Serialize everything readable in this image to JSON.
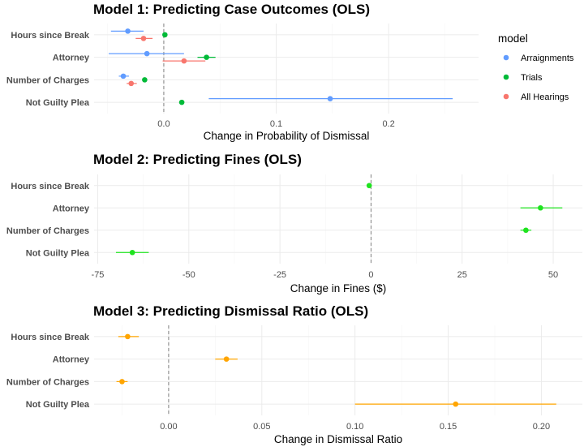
{
  "chart_data": [
    {
      "type": "coefficient-plot",
      "title": "Model 1: Predicting Case Outcomes (OLS)",
      "xlabel": "Change in Probability of Dismissal",
      "categories": [
        "Hours since Break",
        "Attorney",
        "Number of Charges",
        "Not Guilty Plea"
      ],
      "xticks": [
        0.0,
        0.1,
        0.2
      ],
      "xtick_labels": [
        "0.0",
        "0.1",
        "0.2"
      ],
      "xlim": [
        -0.062,
        0.28
      ],
      "zero_line": 0,
      "legend": {
        "title": "model",
        "position": "right"
      },
      "series": [
        {
          "name": "Arraignments",
          "color": "#619CFF",
          "points": [
            {
              "category": "Hours since Break",
              "estimate": -0.032,
              "low": -0.047,
              "high": -0.018
            },
            {
              "category": "Attorney",
              "estimate": -0.015,
              "low": -0.049,
              "high": 0.018
            },
            {
              "category": "Number of Charges",
              "estimate": -0.036,
              "low": -0.04,
              "high": -0.031
            },
            {
              "category": "Not Guilty Plea",
              "estimate": 0.148,
              "low": 0.04,
              "high": 0.257
            }
          ]
        },
        {
          "name": "Trials",
          "color": "#00BA38",
          "points": [
            {
              "category": "Hours since Break",
              "estimate": 0.001,
              "low": -0.001,
              "high": 0.003
            },
            {
              "category": "Attorney",
              "estimate": 0.038,
              "low": 0.03,
              "high": 0.046
            },
            {
              "category": "Number of Charges",
              "estimate": -0.017,
              "low": -0.018,
              "high": -0.016
            },
            {
              "category": "Not Guilty Plea",
              "estimate": 0.016,
              "low": 0.015,
              "high": 0.018
            }
          ]
        },
        {
          "name": "All Hearings",
          "color": "#F8766D",
          "points": [
            {
              "category": "Hours since Break",
              "estimate": -0.018,
              "low": -0.025,
              "high": -0.01
            },
            {
              "category": "Attorney",
              "estimate": 0.018,
              "low": -0.001,
              "high": 0.037
            },
            {
              "category": "Number of Charges",
              "estimate": -0.029,
              "low": -0.033,
              "high": -0.024
            }
          ]
        }
      ]
    },
    {
      "type": "coefficient-plot",
      "title": "Model 2: Predicting Fines (OLS)",
      "xlabel": "Change in Fines ($)",
      "categories": [
        "Hours since Break",
        "Attorney",
        "Number of Charges",
        "Not Guilty Plea"
      ],
      "xticks": [
        -75,
        -50,
        -25,
        0,
        25,
        50
      ],
      "xtick_labels": [
        "-75",
        "-50",
        "-25",
        "0",
        "25",
        "50"
      ],
      "xlim": [
        -76,
        58
      ],
      "zero_line": 0,
      "series": [
        {
          "name": "",
          "color": "#1FE31F",
          "points": [
            {
              "category": "Hours since Break",
              "estimate": -0.5,
              "low": -0.9,
              "high": -0.1
            },
            {
              "category": "Attorney",
              "estimate": 46.5,
              "low": 41,
              "high": 52.5
            },
            {
              "category": "Number of Charges",
              "estimate": 42.5,
              "low": 41,
              "high": 44
            },
            {
              "category": "Not Guilty Plea",
              "estimate": -65.5,
              "low": -70,
              "high": -61
            }
          ]
        }
      ]
    },
    {
      "type": "coefficient-plot",
      "title": "Model 3: Predicting Dismissal Ratio (OLS)",
      "xlabel": "Change in Dismissal Ratio",
      "categories": [
        "Hours since Break",
        "Attorney",
        "Number of Charges",
        "Not Guilty Plea"
      ],
      "xticks": [
        0.0,
        0.05,
        0.1,
        0.15,
        0.2
      ],
      "xtick_labels": [
        "0.00",
        "0.05",
        "0.10",
        "0.15",
        "0.20"
      ],
      "xlim": [
        -0.04,
        0.222
      ],
      "zero_line": 0,
      "series": [
        {
          "name": "",
          "color": "#FFA500",
          "points": [
            {
              "category": "Hours since Break",
              "estimate": -0.022,
              "low": -0.027,
              "high": -0.016
            },
            {
              "category": "Attorney",
              "estimate": 0.031,
              "low": 0.025,
              "high": 0.037
            },
            {
              "category": "Number of Charges",
              "estimate": -0.025,
              "low": -0.028,
              "high": -0.022
            },
            {
              "category": "Not Guilty Plea",
              "estimate": 0.154,
              "low": 0.1,
              "high": 0.208
            }
          ]
        }
      ]
    }
  ]
}
